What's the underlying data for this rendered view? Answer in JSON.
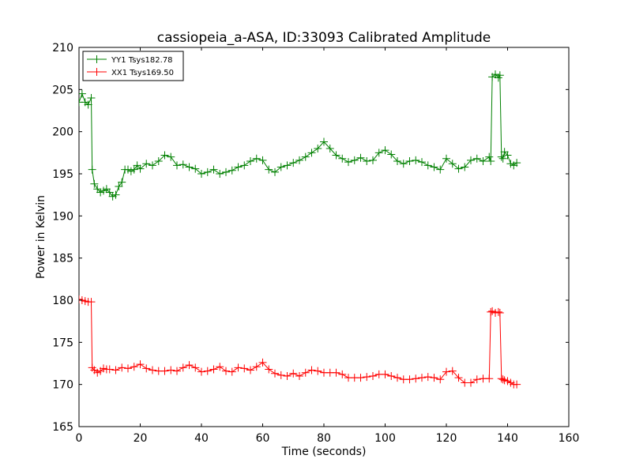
{
  "chart_data": {
    "type": "line",
    "title": "cassiopeia_a-ASA, ID:33093 Calibrated Amplitude",
    "xlabel": "Time (seconds)",
    "ylabel": "Power in Kelvin",
    "xlim": [
      0,
      160
    ],
    "ylim": [
      165,
      210
    ],
    "xticks": [
      "0",
      "20",
      "40",
      "60",
      "80",
      "100",
      "120",
      "140",
      "160"
    ],
    "yticks": [
      "165",
      "170",
      "175",
      "180",
      "185",
      "190",
      "195",
      "200",
      "205",
      "210"
    ],
    "grid": false,
    "legend_position": "upper-left",
    "marker": "+",
    "series": [
      {
        "name": "YY1 Tsys182.78",
        "color": "#008000",
        "x": [
          0,
          1,
          2,
          3,
          4,
          4.3,
          5,
          6,
          7,
          8,
          9,
          10,
          11,
          12,
          13,
          14,
          15,
          16,
          17,
          18,
          19,
          20,
          22,
          24,
          26,
          28,
          30,
          32,
          34,
          36,
          38,
          40,
          42,
          44,
          46,
          48,
          50,
          52,
          54,
          56,
          58,
          60,
          62,
          64,
          66,
          68,
          70,
          72,
          74,
          76,
          78,
          80,
          82,
          84,
          86,
          88,
          90,
          92,
          94,
          96,
          98,
          100,
          102,
          104,
          106,
          108,
          110,
          112,
          114,
          116,
          118,
          120,
          122,
          124,
          126,
          128,
          130,
          132,
          134,
          134.5,
          135,
          136,
          137,
          137.5,
          138,
          138.5,
          139,
          140,
          141,
          142,
          143
        ],
        "y": [
          203.5,
          204.5,
          203.5,
          203.2,
          204,
          195.5,
          193.8,
          193.2,
          192.8,
          193,
          193.2,
          192.8,
          192.3,
          192.5,
          193.5,
          194,
          195.5,
          195.5,
          195.3,
          195.5,
          196,
          195.6,
          196.2,
          196,
          196.5,
          197.2,
          197,
          196,
          196.1,
          195.8,
          195.6,
          195,
          195.2,
          195.5,
          195,
          195.2,
          195.4,
          195.8,
          196,
          196.5,
          196.8,
          196.6,
          195.5,
          195.2,
          195.8,
          196,
          196.3,
          196.6,
          197,
          197.5,
          198,
          198.8,
          198,
          197.2,
          196.8,
          196.4,
          196.6,
          196.9,
          196.5,
          196.6,
          197.5,
          197.8,
          197.3,
          196.5,
          196.2,
          196.5,
          196.6,
          196.4,
          196,
          195.8,
          195.5,
          196.8,
          196.2,
          195.6,
          195.8,
          196.6,
          196.8,
          196.5,
          197,
          196.5,
          206.5,
          206.8,
          206.4,
          206.7,
          197,
          196.8,
          197.6,
          197.2,
          196.2,
          196,
          196.3
        ]
      },
      {
        "name": "XX1 Tsys169.50",
        "color": "#ff0000",
        "x": [
          0,
          1,
          2,
          3,
          4,
          4.3,
          5,
          6,
          7,
          8,
          9,
          10,
          12,
          14,
          16,
          18,
          20,
          22,
          24,
          26,
          28,
          30,
          32,
          34,
          36,
          38,
          40,
          42,
          44,
          46,
          48,
          50,
          52,
          54,
          56,
          58,
          60,
          62,
          64,
          66,
          68,
          70,
          72,
          74,
          76,
          78,
          80,
          82,
          84,
          86,
          88,
          90,
          92,
          94,
          96,
          98,
          100,
          102,
          104,
          106,
          108,
          110,
          112,
          114,
          116,
          118,
          120,
          122,
          124,
          126,
          128,
          130,
          132,
          134,
          134.5,
          135,
          136,
          137,
          137.5,
          138,
          138.5,
          139,
          140,
          141,
          142,
          143
        ],
        "y": [
          180.1,
          180,
          179.9,
          179.8,
          179.8,
          172,
          171.7,
          171.4,
          171.6,
          171.9,
          171.8,
          171.8,
          171.7,
          172,
          171.9,
          172.1,
          172.4,
          171.9,
          171.7,
          171.6,
          171.6,
          171.7,
          171.6,
          172,
          172.3,
          172,
          171.5,
          171.6,
          171.8,
          172.1,
          171.6,
          171.5,
          172,
          171.9,
          171.7,
          172.1,
          172.6,
          171.8,
          171.3,
          171.1,
          171,
          171.3,
          171,
          171.4,
          171.7,
          171.6,
          171.4,
          171.4,
          171.4,
          171.2,
          170.8,
          170.8,
          170.8,
          170.9,
          171,
          171.2,
          171.2,
          171,
          170.8,
          170.6,
          170.6,
          170.7,
          170.8,
          170.9,
          170.8,
          170.6,
          171.5,
          171.6,
          170.8,
          170.2,
          170.2,
          170.6,
          170.7,
          170.7,
          178.6,
          178.7,
          178.5,
          178.6,
          178.5,
          170.7,
          170.6,
          170.5,
          170.4,
          170.2,
          170,
          170
        ]
      }
    ]
  }
}
